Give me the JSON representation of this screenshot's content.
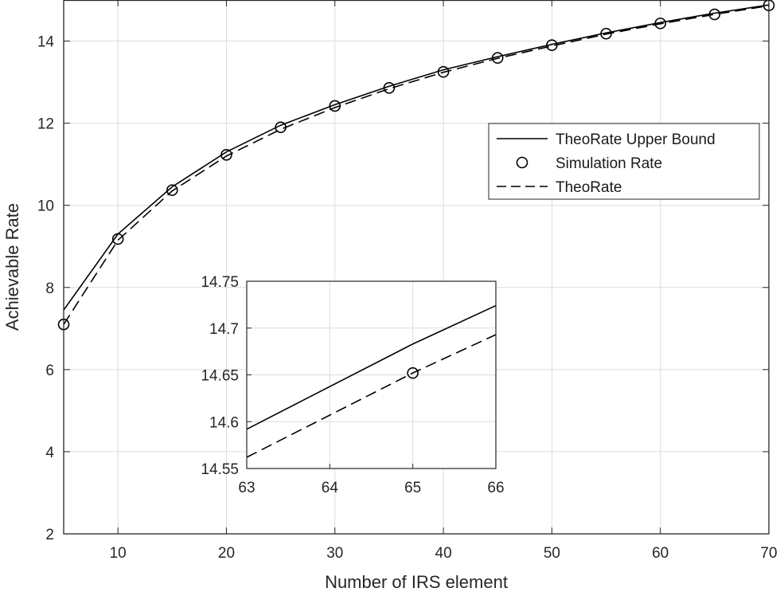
{
  "chart_data": [
    {
      "type": "line",
      "xlabel": "Number of IRS element",
      "ylabel": "Achievable Rate",
      "xlim": [
        5,
        70
      ],
      "ylim": [
        2,
        15
      ],
      "xticks": [
        10,
        20,
        30,
        40,
        50,
        60,
        70
      ],
      "yticks": [
        2,
        4,
        6,
        8,
        10,
        12,
        14
      ],
      "grid": true,
      "legend_position": "upper-right",
      "x": [
        5,
        10,
        15,
        20,
        25,
        30,
        35,
        40,
        45,
        50,
        55,
        60,
        65,
        70
      ],
      "series": [
        {
          "name": "TheoRate Upper Bound",
          "style": "solid",
          "color": "#000000",
          "values": [
            7.45,
            9.3,
            10.45,
            11.3,
            11.95,
            12.45,
            12.9,
            13.3,
            13.62,
            13.92,
            14.2,
            14.45,
            14.68,
            14.88
          ]
        },
        {
          "name": "Simulation Rate",
          "style": "circle-markers",
          "color": "#000000",
          "values": [
            7.1,
            9.18,
            10.37,
            11.23,
            11.9,
            12.42,
            12.86,
            13.25,
            13.59,
            13.9,
            14.18,
            14.43,
            14.65,
            14.87
          ]
        },
        {
          "name": "TheoRate",
          "style": "dashed",
          "color": "#000000",
          "values": [
            7.1,
            9.15,
            10.35,
            11.2,
            11.85,
            12.38,
            12.84,
            13.24,
            13.58,
            13.88,
            14.17,
            14.42,
            14.65,
            14.86
          ]
        }
      ]
    },
    {
      "type": "line",
      "inset": true,
      "xlim": [
        63,
        66
      ],
      "ylim": [
        14.55,
        14.75
      ],
      "xticks": [
        63,
        64,
        65,
        66
      ],
      "yticks": [
        14.55,
        14.6,
        14.65,
        14.7,
        14.75
      ],
      "ytick_labels": [
        "14.55",
        "14.6",
        "14.65",
        "14.7",
        "14.75"
      ],
      "series": [
        {
          "name": "TheoRate Upper Bound",
          "style": "solid",
          "x": [
            63,
            65,
            66
          ],
          "values": [
            14.592,
            14.683,
            14.724
          ]
        },
        {
          "name": "Simulation Rate",
          "style": "circle-markers",
          "x": [
            65
          ],
          "values": [
            14.652
          ]
        },
        {
          "name": "TheoRate",
          "style": "dashed",
          "x": [
            63,
            65,
            66
          ],
          "values": [
            14.562,
            14.652,
            14.693
          ]
        }
      ]
    }
  ]
}
